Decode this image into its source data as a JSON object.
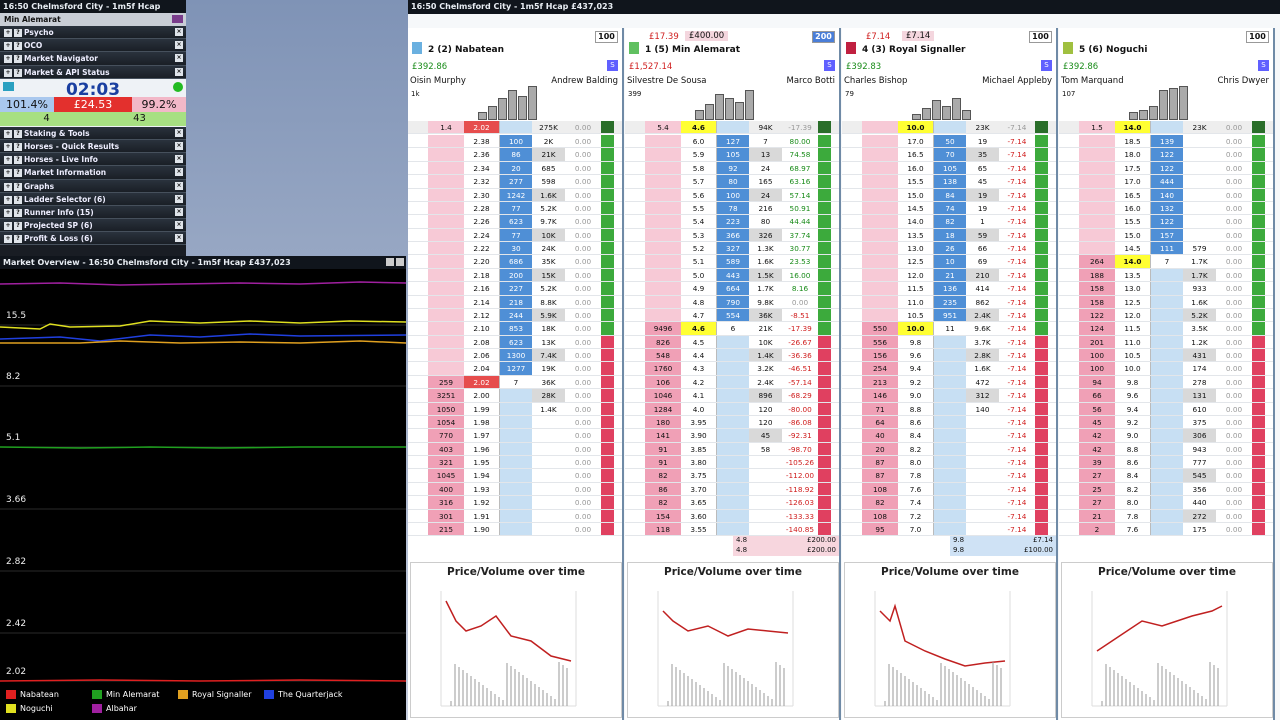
{
  "left": {
    "title": "16:50 Chelmsford City - 1m5f Hcap",
    "selected": "Min Alemarat",
    "items": [
      "Psycho",
      "OCO",
      "Market Navigator",
      "Market & API Status"
    ],
    "timer": "02:03",
    "pct_back": "101.4%",
    "pct_mid": "£24.53",
    "pct_lay": "99.2%",
    "n1": "4",
    "n2": "43",
    "items2": [
      "Staking & Tools",
      "Horses - Quick Results",
      "Horses - Live Info",
      "Market Information",
      "Graphs",
      "Ladder Selector (6)",
      "Runner Info (15)",
      "Projected SP (6)",
      "Profit & Loss (6)"
    ]
  },
  "overview": {
    "title": "Market Overview - 16:50 Chelmsford City - 1m5f Hcap £437,023",
    "yticks": [
      "15.5",
      "8.2",
      "5.1",
      "3.66",
      "2.82",
      "2.42",
      "2.02"
    ],
    "legend": [
      {
        "name": "Nabatean",
        "color": "#e02020"
      },
      {
        "name": "Min Alemarat",
        "color": "#20a020"
      },
      {
        "name": "Royal Signaller",
        "color": "#e0a020"
      },
      {
        "name": "The Quarterjack",
        "color": "#2040e0"
      },
      {
        "name": "Noguchi",
        "color": "#e0e020"
      },
      {
        "name": "Albahar",
        "color": "#a020a0"
      }
    ]
  },
  "ladder_title": "16:50 Chelmsford City - 1m5f Hcap £437,023",
  "runners": [
    {
      "name": "2 (2) Nabatean",
      "stake": "100",
      "pl": "£392.86",
      "plc": "g",
      "jockey": "Oisin Murphy",
      "trainer": "Andrew Balding",
      "vol": "1k",
      "top": [
        "1.4",
        "2.02",
        "",
        "275K",
        "0.00"
      ],
      "pinfo": [
        "",
        ""
      ],
      "chart": "Price/Volume over time",
      "rows": [
        [
          "",
          "2.38",
          "100",
          "2K",
          "0.00"
        ],
        [
          "",
          "2.36",
          "86",
          "21K",
          "0.00"
        ],
        [
          "",
          "2.34",
          "20",
          "685",
          "0.00"
        ],
        [
          "",
          "2.32",
          "277",
          "598",
          "0.00"
        ],
        [
          "",
          "2.30",
          "1242",
          "1.6K",
          "0.00"
        ],
        [
          "",
          "2.28",
          "77",
          "5.2K",
          "0.00"
        ],
        [
          "",
          "2.26",
          "623",
          "9.7K",
          "0.00"
        ],
        [
          "",
          "2.24",
          "77",
          "10K",
          "0.00"
        ],
        [
          "",
          "2.22",
          "30",
          "24K",
          "0.00"
        ],
        [
          "",
          "2.20",
          "686",
          "35K",
          "0.00"
        ],
        [
          "",
          "2.18",
          "200",
          "15K",
          "0.00"
        ],
        [
          "",
          "2.16",
          "227",
          "5.2K",
          "0.00"
        ],
        [
          "",
          "2.14",
          "218",
          "8.8K",
          "0.00"
        ],
        [
          "",
          "2.12",
          "244",
          "5.9K",
          "0.00"
        ],
        [
          "",
          "2.10",
          "853",
          "18K",
          "0.00"
        ],
        [
          "",
          "2.08",
          "623",
          "13K",
          "0.00"
        ],
        [
          "",
          "2.06",
          "1300",
          "7.4K",
          "0.00"
        ],
        [
          "",
          "2.04",
          "1277",
          "19K",
          "0.00"
        ],
        [
          "259",
          "2.02",
          "7",
          "36K",
          "0.00"
        ],
        [
          "3251",
          "2.00",
          "",
          "28K",
          "0.00"
        ],
        [
          "1050",
          "1.99",
          "",
          "1.4K",
          "0.00"
        ],
        [
          "1054",
          "1.98",
          "",
          "",
          "0.00"
        ],
        [
          "770",
          "1.97",
          "",
          "",
          "0.00"
        ],
        [
          "403",
          "1.96",
          "",
          "",
          "0.00"
        ],
        [
          "321",
          "1.95",
          "",
          "",
          "0.00"
        ],
        [
          "1045",
          "1.94",
          "",
          "",
          "0.00"
        ],
        [
          "400",
          "1.93",
          "",
          "",
          "0.00"
        ],
        [
          "316",
          "1.92",
          "",
          "",
          "0.00"
        ],
        [
          "301",
          "1.91",
          "",
          "",
          "0.00"
        ],
        [
          "215",
          "1.90",
          "",
          "",
          "0.00"
        ]
      ]
    },
    {
      "name": "1 (5) Min Alemarat",
      "stake": "200",
      "pl": "£1,527.14",
      "plc": "r",
      "jockey": "Silvestre De Sousa",
      "trainer": "Marco Botti",
      "vol": "399",
      "top": [
        "5.4",
        "4.6",
        "",
        "94K",
        "-17.39"
      ],
      "pinfo": [
        "£17.39",
        "£400.00"
      ],
      "chart": "Price/Volume over time",
      "extra": [
        [
          "4.8",
          "£200.00"
        ],
        [
          "4.8",
          "£200.00"
        ]
      ],
      "rows": [
        [
          "",
          "6.0",
          "127",
          "7",
          "80.00"
        ],
        [
          "",
          "5.9",
          "105",
          "13",
          "74.58"
        ],
        [
          "",
          "5.8",
          "92",
          "24",
          "68.97"
        ],
        [
          "",
          "5.7",
          "80",
          "165",
          "63.16"
        ],
        [
          "",
          "5.6",
          "100",
          "24",
          "57.14"
        ],
        [
          "",
          "5.5",
          "78",
          "216",
          "50.91"
        ],
        [
          "",
          "5.4",
          "223",
          "80",
          "44.44"
        ],
        [
          "",
          "5.3",
          "366",
          "326",
          "37.74"
        ],
        [
          "",
          "5.2",
          "327",
          "1.3K",
          "30.77"
        ],
        [
          "",
          "5.1",
          "589",
          "1.6K",
          "23.53"
        ],
        [
          "",
          "5.0",
          "443",
          "1.5K",
          "16.00"
        ],
        [
          "",
          "4.9",
          "664",
          "1.7K",
          "8.16"
        ],
        [
          "",
          "4.8",
          "790",
          "9.8K",
          "0.00"
        ],
        [
          "",
          "4.7",
          "554",
          "36K",
          "-8.51"
        ],
        [
          "9496",
          "4.6",
          "6",
          "21K",
          "-17.39"
        ],
        [
          "826",
          "4.5",
          "",
          "10K",
          "-26.67"
        ],
        [
          "548",
          "4.4",
          "",
          "1.4K",
          "-36.36"
        ],
        [
          "1760",
          "4.3",
          "",
          "3.2K",
          "-46.51"
        ],
        [
          "106",
          "4.2",
          "",
          "2.4K",
          "-57.14"
        ],
        [
          "1046",
          "4.1",
          "",
          "896",
          "-68.29"
        ],
        [
          "1284",
          "4.0",
          "",
          "120",
          "-80.00"
        ],
        [
          "180",
          "3.95",
          "",
          "120",
          "-86.08"
        ],
        [
          "141",
          "3.90",
          "",
          "45",
          "-92.31"
        ],
        [
          "91",
          "3.85",
          "",
          "58",
          "-98.70"
        ],
        [
          "91",
          "3.80",
          "",
          "",
          "-105.26"
        ],
        [
          "82",
          "3.75",
          "",
          "",
          "-112.00"
        ],
        [
          "86",
          "3.70",
          "",
          "",
          "-118.92"
        ],
        [
          "82",
          "3.65",
          "",
          "",
          "-126.03"
        ],
        [
          "154",
          "3.60",
          "",
          "",
          "-133.33"
        ],
        [
          "118",
          "3.55",
          "",
          "",
          "-140.85"
        ]
      ]
    },
    {
      "name": "4 (3) Royal Signaller",
      "stake": "100",
      "pl": "£392.83",
      "plc": "g",
      "jockey": "Charles Bishop",
      "trainer": "Michael Appleby",
      "vol": "79",
      "top": [
        "",
        "10.0",
        "",
        "23K",
        "-7.14"
      ],
      "pinfo": [
        "£7.14",
        "£7.14"
      ],
      "chart": "Price/Volume over time",
      "extra": [
        [
          "9.8",
          "£7.14"
        ],
        [
          "9.8",
          "£100.00"
        ]
      ],
      "rows": [
        [
          "",
          "17.0",
          "50",
          "19",
          "-7.14"
        ],
        [
          "",
          "16.5",
          "70",
          "35",
          "-7.14"
        ],
        [
          "",
          "16.0",
          "105",
          "65",
          "-7.14"
        ],
        [
          "",
          "15.5",
          "138",
          "45",
          "-7.14"
        ],
        [
          "",
          "15.0",
          "84",
          "19",
          "-7.14"
        ],
        [
          "",
          "14.5",
          "74",
          "19",
          "-7.14"
        ],
        [
          "",
          "14.0",
          "82",
          "1",
          "-7.14"
        ],
        [
          "",
          "13.5",
          "18",
          "59",
          "-7.14"
        ],
        [
          "",
          "13.0",
          "26",
          "66",
          "-7.14"
        ],
        [
          "",
          "12.5",
          "10",
          "69",
          "-7.14"
        ],
        [
          "",
          "12.0",
          "21",
          "210",
          "-7.14"
        ],
        [
          "",
          "11.5",
          "136",
          "414",
          "-7.14"
        ],
        [
          "",
          "11.0",
          "235",
          "862",
          "-7.14"
        ],
        [
          "",
          "10.5",
          "951",
          "2.4K",
          "-7.14"
        ],
        [
          "550",
          "10.0",
          "11",
          "9.6K",
          "-7.14"
        ],
        [
          "556",
          "9.8",
          "",
          "3.7K",
          "-7.14"
        ],
        [
          "156",
          "9.6",
          "",
          "2.8K",
          "-7.14"
        ],
        [
          "254",
          "9.4",
          "",
          "1.6K",
          "-7.14"
        ],
        [
          "213",
          "9.2",
          "",
          "472",
          "-7.14"
        ],
        [
          "146",
          "9.0",
          "",
          "312",
          "-7.14"
        ],
        [
          "71",
          "8.8",
          "",
          "140",
          "-7.14"
        ],
        [
          "64",
          "8.6",
          "",
          "",
          "-7.14"
        ],
        [
          "40",
          "8.4",
          "",
          "",
          "-7.14"
        ],
        [
          "20",
          "8.2",
          "",
          "",
          "-7.14"
        ],
        [
          "87",
          "8.0",
          "",
          "",
          "-7.14"
        ],
        [
          "87",
          "7.8",
          "",
          "",
          "-7.14"
        ],
        [
          "108",
          "7.6",
          "",
          "",
          "-7.14"
        ],
        [
          "82",
          "7.4",
          "",
          "",
          "-7.14"
        ],
        [
          "108",
          "7.2",
          "",
          "",
          "-7.14"
        ],
        [
          "95",
          "7.0",
          "",
          "",
          "-7.14"
        ]
      ]
    },
    {
      "name": "5 (6) Noguchi",
      "stake": "100",
      "pl": "£392.86",
      "plc": "g",
      "jockey": "Tom Marquand",
      "trainer": "Chris Dwyer",
      "vol": "107",
      "top": [
        "1.5",
        "14.0",
        "",
        "23K",
        "0.00"
      ],
      "pinfo": [
        "",
        ""
      ],
      "chart": "Price/Volume over time",
      "rows": [
        [
          "",
          "18.5",
          "139",
          "",
          "0.00"
        ],
        [
          "",
          "18.0",
          "122",
          "",
          "0.00"
        ],
        [
          "",
          "17.5",
          "122",
          "",
          "0.00"
        ],
        [
          "",
          "17.0",
          "444",
          "",
          "0.00"
        ],
        [
          "",
          "16.5",
          "140",
          "",
          "0.00"
        ],
        [
          "",
          "16.0",
          "132",
          "",
          "0.00"
        ],
        [
          "",
          "15.5",
          "122",
          "",
          "0.00"
        ],
        [
          "",
          "15.0",
          "157",
          "",
          "0.00"
        ],
        [
          "",
          "14.5",
          "111",
          "579",
          "0.00"
        ],
        [
          "264",
          "14.0",
          "7",
          "1.7K",
          "0.00"
        ],
        [
          "188",
          "13.5",
          "",
          "1.7K",
          "0.00"
        ],
        [
          "158",
          "13.0",
          "",
          "933",
          "0.00"
        ],
        [
          "158",
          "12.5",
          "",
          "1.6K",
          "0.00"
        ],
        [
          "122",
          "12.0",
          "",
          "5.2K",
          "0.00"
        ],
        [
          "124",
          "11.5",
          "",
          "3.5K",
          "0.00"
        ],
        [
          "201",
          "11.0",
          "",
          "1.2K",
          "0.00"
        ],
        [
          "100",
          "10.5",
          "",
          "431",
          "0.00"
        ],
        [
          "100",
          "10.0",
          "",
          "174",
          "0.00"
        ],
        [
          "94",
          "9.8",
          "",
          "278",
          "0.00"
        ],
        [
          "66",
          "9.6",
          "",
          "131",
          "0.00"
        ],
        [
          "56",
          "9.4",
          "",
          "610",
          "0.00"
        ],
        [
          "45",
          "9.2",
          "",
          "375",
          "0.00"
        ],
        [
          "42",
          "9.0",
          "",
          "306",
          "0.00"
        ],
        [
          "42",
          "8.8",
          "",
          "943",
          "0.00"
        ],
        [
          "39",
          "8.6",
          "",
          "777",
          "0.00"
        ],
        [
          "27",
          "8.4",
          "",
          "545",
          "0.00"
        ],
        [
          "25",
          "8.2",
          "",
          "356",
          "0.00"
        ],
        [
          "27",
          "8.0",
          "",
          "440",
          "0.00"
        ],
        [
          "21",
          "7.8",
          "",
          "272",
          "0.00"
        ],
        [
          "2",
          "7.6",
          "",
          "175",
          "0.00"
        ]
      ]
    }
  ]
}
